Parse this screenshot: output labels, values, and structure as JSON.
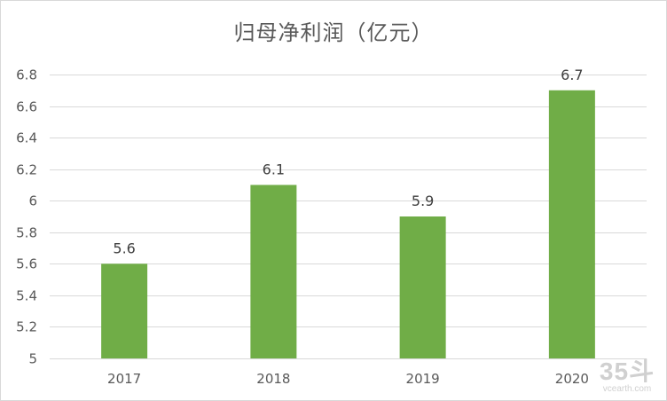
{
  "chart_data": {
    "type": "bar",
    "title": "归母净利润（亿元）",
    "categories": [
      "2017",
      "2018",
      "2019",
      "2020"
    ],
    "values": [
      5.6,
      6.1,
      5.9,
      6.7
    ],
    "data_labels": [
      "5.6",
      "6.1",
      "5.9",
      "6.7"
    ],
    "ylim": [
      5,
      6.8
    ],
    "yticks": [
      5,
      5.2,
      5.4,
      5.6,
      5.8,
      6,
      6.2,
      6.4,
      6.6,
      6.8
    ],
    "ytick_labels": [
      "5",
      "5.2",
      "5.4",
      "5.6",
      "5.8",
      "6",
      "6.2",
      "6.4",
      "6.6",
      "6.8"
    ],
    "xlabel": "",
    "ylabel": "",
    "grid": true,
    "legend": "none",
    "bar_color": "#70ad47"
  },
  "watermark": {
    "main": "35斗",
    "sub": "vcearth.com"
  }
}
